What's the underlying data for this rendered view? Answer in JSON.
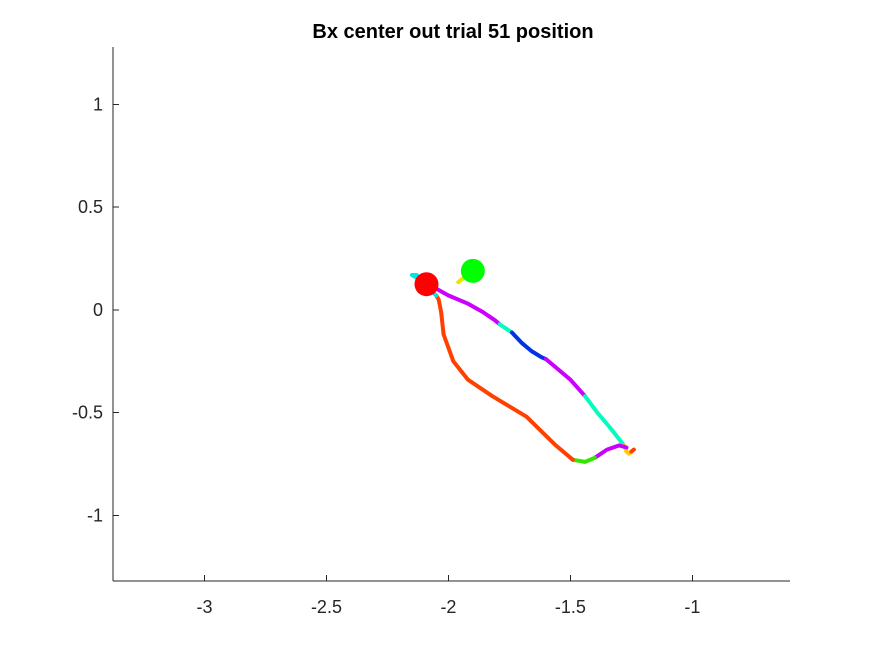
{
  "chart_data": {
    "type": "line",
    "title": "Bx  center out trial 51 position",
    "xlabel": "",
    "ylabel": "",
    "xlim": [
      -3.375,
      -0.6
    ],
    "ylim": [
      -1.32,
      1.28
    ],
    "x_ticks": [
      {
        "value": -3,
        "label": "-3"
      },
      {
        "value": -2.5,
        "label": "-2.5"
      },
      {
        "value": -2,
        "label": "-2"
      },
      {
        "value": -1.5,
        "label": "-1.5"
      },
      {
        "value": -1,
        "label": "-1"
      }
    ],
    "y_ticks": [
      {
        "value": 1,
        "label": "1"
      },
      {
        "value": 0.5,
        "label": "0.5"
      },
      {
        "value": 0,
        "label": "0"
      },
      {
        "value": -0.5,
        "label": "-0.5"
      },
      {
        "value": -1,
        "label": "-1"
      }
    ],
    "grid": false,
    "legend": "none",
    "series": [
      {
        "color": "#e6e600",
        "x": [
          -1.9,
          -1.96
        ],
        "y": [
          0.19,
          0.135
        ]
      },
      {
        "color": "#00e5e5",
        "x": [
          -2.09,
          -2.12,
          -2.15,
          -2.13,
          -2.09
        ],
        "y": [
          0.14,
          0.15,
          0.17,
          0.17,
          0.13
        ]
      },
      {
        "color": "#cc00ff",
        "x": [
          -2.09,
          -2.0,
          -1.92,
          -1.86,
          -1.81,
          -1.79
        ],
        "y": [
          0.13,
          0.07,
          0.03,
          -0.01,
          -0.05,
          -0.07
        ]
      },
      {
        "color": "#00ffbf",
        "x": [
          -1.79,
          -1.74
        ],
        "y": [
          -0.07,
          -0.11
        ]
      },
      {
        "color": "#0033e6",
        "x": [
          -1.74,
          -1.7,
          -1.66,
          -1.62,
          -1.6
        ],
        "y": [
          -0.11,
          -0.16,
          -0.2,
          -0.23,
          -0.24
        ]
      },
      {
        "color": "#cc00ff",
        "x": [
          -1.6,
          -1.56,
          -1.5,
          -1.44
        ],
        "y": [
          -0.24,
          -0.28,
          -0.34,
          -0.42
        ]
      },
      {
        "color": "#00ffbf",
        "x": [
          -1.44,
          -1.39,
          -1.34,
          -1.3,
          -1.28
        ],
        "y": [
          -0.42,
          -0.5,
          -0.57,
          -0.63,
          -0.66
        ]
      },
      {
        "color": "#ffcc00",
        "x": [
          -1.28,
          -1.27,
          -1.26,
          -1.25
        ],
        "y": [
          -0.66,
          -0.69,
          -0.7,
          -0.69
        ]
      },
      {
        "color": "#cc00ff",
        "x": [
          -1.27,
          -1.3,
          -1.35,
          -1.4
        ],
        "y": [
          -0.67,
          -0.66,
          -0.68,
          -0.72
        ]
      },
      {
        "color": "#33e600",
        "x": [
          -1.4,
          -1.44,
          -1.49
        ],
        "y": [
          -0.72,
          -0.74,
          -0.73
        ]
      },
      {
        "color": "#ff4000",
        "x": [
          -1.49,
          -1.56,
          -1.68,
          -1.82,
          -1.92,
          -1.98,
          -2.02,
          -2.03,
          -2.04,
          -2.05
        ],
        "y": [
          -0.73,
          -0.66,
          -0.52,
          -0.42,
          -0.34,
          -0.25,
          -0.12,
          -0.01,
          0.05,
          0.07
        ]
      },
      {
        "color": "#00e5e5",
        "x": [
          -2.05,
          -2.07,
          -2.09
        ],
        "y": [
          0.07,
          0.09,
          0.12
        ]
      },
      {
        "color": "#ff4000",
        "x": [
          -1.25,
          -1.24
        ],
        "y": [
          -0.69,
          -0.68
        ]
      }
    ],
    "markers": [
      {
        "name": "target",
        "x": -1.9,
        "y": 0.19,
        "color": "#00ff00"
      },
      {
        "name": "start",
        "x": -2.09,
        "y": 0.125,
        "color": "#ff0000"
      }
    ]
  }
}
